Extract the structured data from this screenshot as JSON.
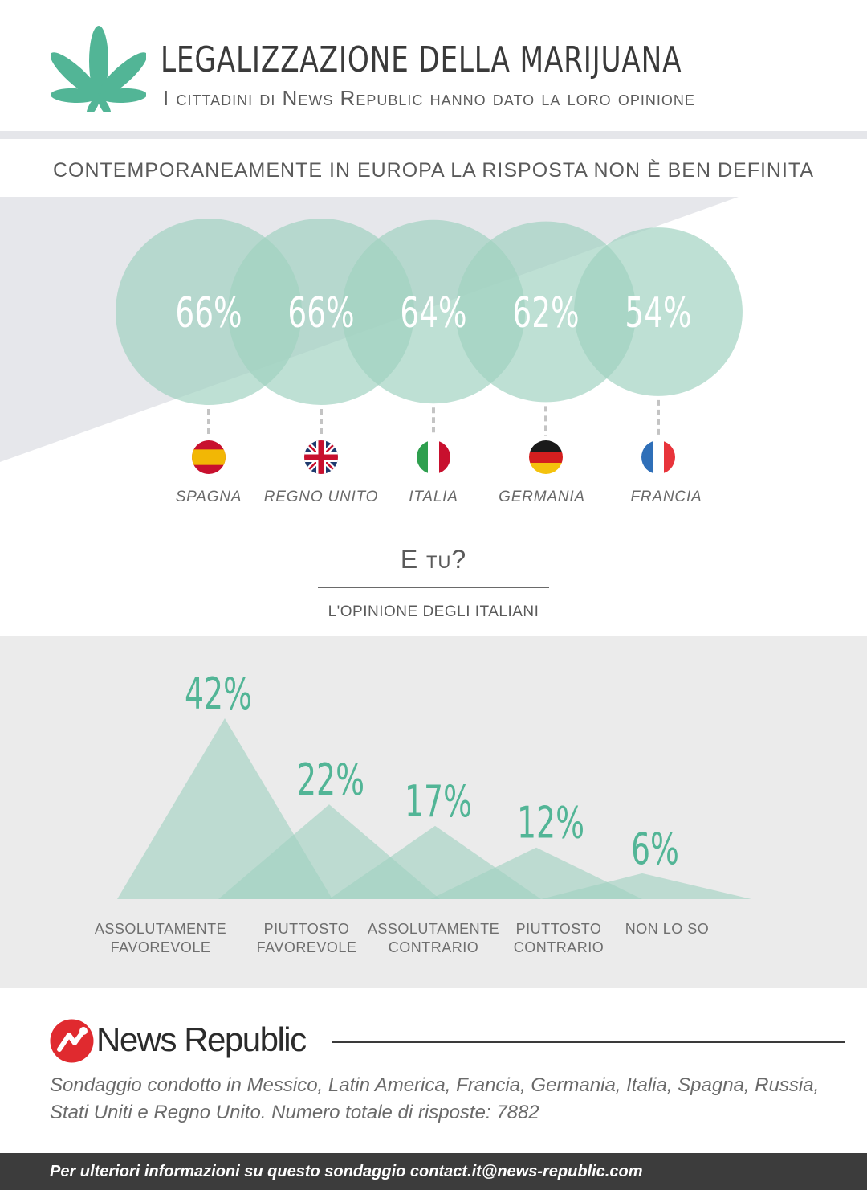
{
  "header": {
    "title": "LEGALIZZAZIONE DELLA MARIJUANA",
    "subtitle": "I cittadini di News Republic hanno dato la loro opinione"
  },
  "europe_section": {
    "title": "CONTEMPORANEAMENTE IN EUROPA LA RISPOSTA NON È BEN DEFINITA"
  },
  "italy_section": {
    "title": "E tu?",
    "subtitle": "L'OPINIONE DEGLI ITALIANI"
  },
  "chart_data": [
    {
      "type": "bubble",
      "categories": [
        "SPAGNA",
        "REGNO UNITO",
        "ITALIA",
        "GERMANIA",
        "FRANCIA"
      ],
      "values": [
        66,
        66,
        64,
        62,
        54
      ],
      "value_labels": [
        "66%",
        "66%",
        "64%",
        "62%",
        "54%"
      ],
      "flags": [
        "spain-flag",
        "uk-flag",
        "italy-flag",
        "germany-flag",
        "france-flag"
      ]
    },
    {
      "type": "area",
      "categories": [
        "ASSOLUTAMENTE FAVOREVOLE",
        "PIUTTOSTO FAVOREVOLE",
        "ASSOLUTAMENTE CONTRARIO",
        "PIUTTOSTO CONTRARIO",
        "NON LO SO"
      ],
      "category_lines": [
        [
          "ASSOLUTAMENTE",
          "FAVOREVOLE"
        ],
        [
          "PIUTTOSTO",
          "FAVOREVOLE"
        ],
        [
          "ASSOLUTAMENTE",
          "CONTRARIO"
        ],
        [
          "PIUTTOSTO",
          "CONTRARIO"
        ],
        [
          "NON LO SO"
        ]
      ],
      "values": [
        42,
        22,
        17,
        12,
        6
      ],
      "value_labels": [
        "42%",
        "22%",
        "17%",
        "12%",
        "6%"
      ]
    }
  ],
  "logo": {
    "text": "News Republic"
  },
  "note": "Sondaggio condotto in Messico, Latin America, Francia, Germania, Italia, Spagna, Russia, Stati Uniti e Regno Unito. Numero totale di risposte: 7882",
  "footer": {
    "text": "Per ulteriori informazioni su questo sondaggio contact.it@news-republic.com"
  },
  "colors": {
    "accent": "#52b596",
    "bubble": "#9fd1c0",
    "band": "#e6e7eb",
    "spain_red": "#c8102e",
    "spain_yellow": "#f2b705",
    "uk_blue": "#1f3a6e",
    "italy_green": "#2e9f4e",
    "france_blue": "#2f6fb8"
  }
}
